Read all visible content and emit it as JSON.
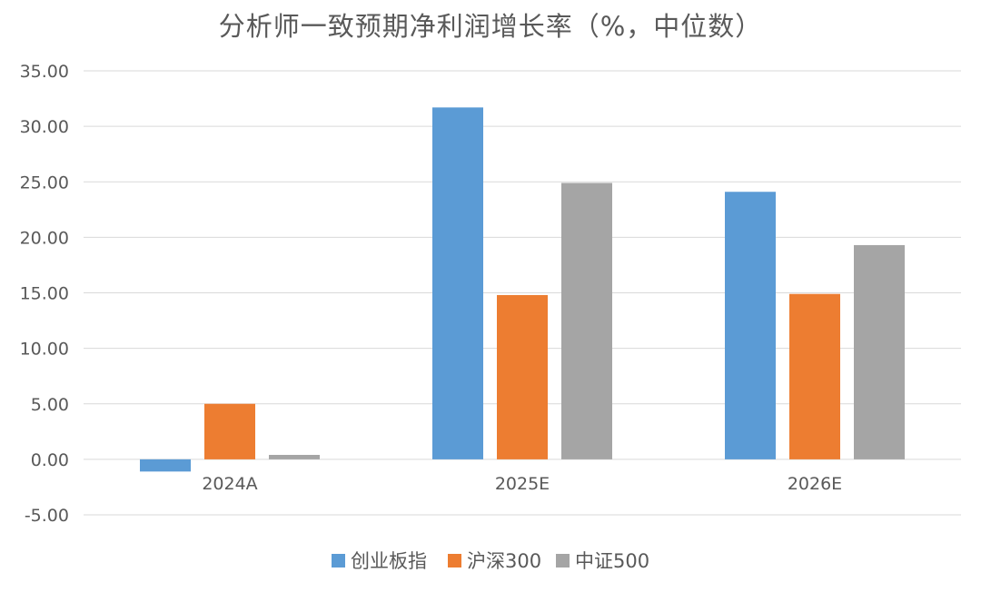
{
  "chart_data": {
    "type": "bar",
    "title": "分析师一致预期净利润增长率（%，中位数）",
    "xlabel": "",
    "ylabel": "",
    "categories": [
      "2024A",
      "2025E",
      "2026E"
    ],
    "series": [
      {
        "name": "创业板指",
        "values": [
          -1.1,
          31.7,
          24.1
        ]
      },
      {
        "name": "沪深300",
        "values": [
          5.0,
          14.8,
          14.9
        ]
      },
      {
        "name": "中证500",
        "values": [
          0.4,
          24.9,
          19.3
        ]
      }
    ],
    "ylim": [
      -5,
      35
    ],
    "yticks": [
      "-5.00",
      "0.00",
      "5.00",
      "10.00",
      "15.00",
      "20.00",
      "25.00",
      "30.00",
      "35.00"
    ],
    "grid": true,
    "legend_position": "bottom-center",
    "colors": [
      "#5b9bd5",
      "#ed7d31",
      "#a5a5a5"
    ],
    "gridline_color": "#d9d9d9",
    "text_color": "#595959"
  }
}
